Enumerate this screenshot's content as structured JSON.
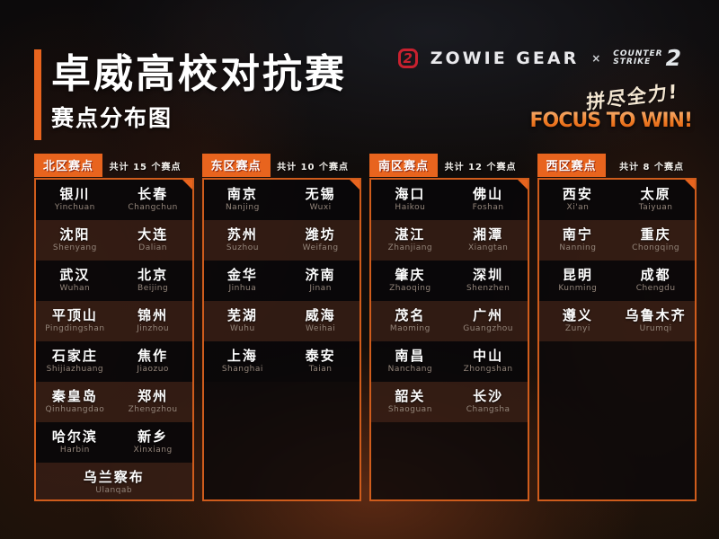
{
  "title": {
    "main": "卓威高校对抗赛",
    "sub": "赛点分布图"
  },
  "brand": {
    "zowie_mark": "2",
    "zowie": "ZOWIE GEAR",
    "separator": "×",
    "cs_line1": "COUNTER",
    "cs_line2": "STRIKE",
    "cs_num": "2",
    "slogan_cn": "拼尽全力!",
    "slogan_en": "FOCUS TO WIN!"
  },
  "colors": {
    "accent": "#e8641e",
    "logo_red": "#c9212f",
    "pinyin_gray": "#93857a"
  },
  "icons": {
    "zowie_logo": "zowie-z-mark",
    "cs2_logo": "counter-strike-2-wordmark"
  },
  "regions": [
    {
      "id": "north",
      "title": "北区赛点",
      "count": "共计 15 个赛点",
      "rows": [
        [
          {
            "cn": "银川",
            "py": "Yinchuan"
          },
          {
            "cn": "长春",
            "py": "Changchun"
          }
        ],
        [
          {
            "cn": "沈阳",
            "py": "Shenyang"
          },
          {
            "cn": "大连",
            "py": "Dalian"
          }
        ],
        [
          {
            "cn": "武汉",
            "py": "Wuhan"
          },
          {
            "cn": "北京",
            "py": "Beijing"
          }
        ],
        [
          {
            "cn": "平顶山",
            "py": "Pingdingshan"
          },
          {
            "cn": "锦州",
            "py": "Jinzhou"
          }
        ],
        [
          {
            "cn": "石家庄",
            "py": "Shijiazhuang"
          },
          {
            "cn": "焦作",
            "py": "Jiaozuo"
          }
        ],
        [
          {
            "cn": "秦皇岛",
            "py": "Qinhuangdao"
          },
          {
            "cn": "郑州",
            "py": "Zhengzhou"
          }
        ],
        [
          {
            "cn": "哈尔滨",
            "py": "Harbin"
          },
          {
            "cn": "新乡",
            "py": "Xinxiang"
          }
        ],
        [
          {
            "cn": "乌兰察布",
            "py": "Ulanqab"
          }
        ]
      ]
    },
    {
      "id": "east",
      "title": "东区赛点",
      "count": "共计 10 个赛点",
      "rows": [
        [
          {
            "cn": "南京",
            "py": "Nanjing"
          },
          {
            "cn": "无锡",
            "py": "Wuxi"
          }
        ],
        [
          {
            "cn": "苏州",
            "py": "Suzhou"
          },
          {
            "cn": "潍坊",
            "py": "Weifang"
          }
        ],
        [
          {
            "cn": "金华",
            "py": "Jinhua"
          },
          {
            "cn": "济南",
            "py": "Jinan"
          }
        ],
        [
          {
            "cn": "芜湖",
            "py": "Wuhu"
          },
          {
            "cn": "威海",
            "py": "Weihai"
          }
        ],
        [
          {
            "cn": "上海",
            "py": "Shanghai"
          },
          {
            "cn": "泰安",
            "py": "Taian"
          }
        ]
      ]
    },
    {
      "id": "south",
      "title": "南区赛点",
      "count": "共计 12 个赛点",
      "rows": [
        [
          {
            "cn": "海口",
            "py": "Haikou"
          },
          {
            "cn": "佛山",
            "py": "Foshan"
          }
        ],
        [
          {
            "cn": "湛江",
            "py": "Zhanjiang"
          },
          {
            "cn": "湘潭",
            "py": "Xiangtan"
          }
        ],
        [
          {
            "cn": "肇庆",
            "py": "Zhaoqing"
          },
          {
            "cn": "深圳",
            "py": "Shenzhen"
          }
        ],
        [
          {
            "cn": "茂名",
            "py": "Maoming"
          },
          {
            "cn": "广州",
            "py": "Guangzhou"
          }
        ],
        [
          {
            "cn": "南昌",
            "py": "Nanchang"
          },
          {
            "cn": "中山",
            "py": "Zhongshan"
          }
        ],
        [
          {
            "cn": "韶关",
            "py": "Shaoguan"
          },
          {
            "cn": "长沙",
            "py": "Changsha"
          }
        ]
      ]
    },
    {
      "id": "west",
      "title": "西区赛点",
      "count": "共计 8 个赛点",
      "rows": [
        [
          {
            "cn": "西安",
            "py": "Xi'an"
          },
          {
            "cn": "太原",
            "py": "Taiyuan"
          }
        ],
        [
          {
            "cn": "南宁",
            "py": "Nanning"
          },
          {
            "cn": "重庆",
            "py": "Chongqing"
          }
        ],
        [
          {
            "cn": "昆明",
            "py": "Kunming"
          },
          {
            "cn": "成都",
            "py": "Chengdu"
          }
        ],
        [
          {
            "cn": "遵义",
            "py": "Zunyi"
          },
          {
            "cn": "乌鲁木齐",
            "py": "Urumqi"
          }
        ]
      ]
    }
  ]
}
